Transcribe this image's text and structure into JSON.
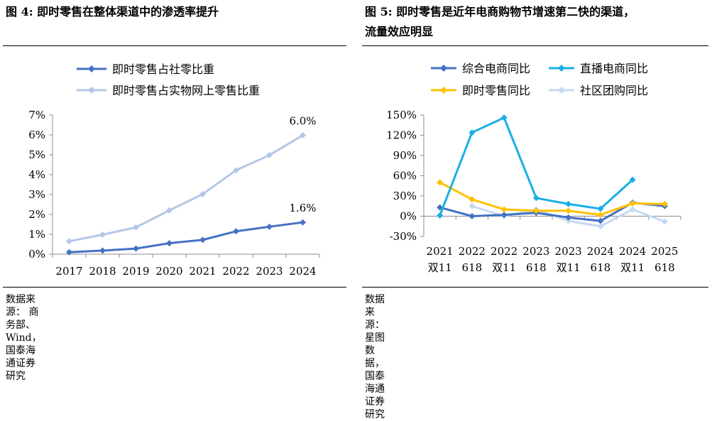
{
  "left": {
    "title": "图 4:  即时零售在整体渠道中的渗透率提升",
    "source": "数据来源：  商务部、Wind，国泰海通证券研究"
  },
  "right": {
    "title_line1": "图 5:  即时零售是近年电商购物节增速第二快的渠道，",
    "title_line2": "流量效应明显",
    "source": "数据来源：  星图数据，国泰海通证券研究"
  },
  "chart_data": [
    {
      "type": "line",
      "title": "即时零售在整体渠道中的渗透率提升",
      "categories": [
        "2017",
        "2018",
        "2019",
        "2020",
        "2021",
        "2022",
        "2023",
        "2024"
      ],
      "ylim": [
        0,
        7
      ],
      "yticks": [
        0,
        1,
        2,
        3,
        4,
        5,
        6,
        7
      ],
      "ytick_labels": [
        "0%",
        "1%",
        "2%",
        "3%",
        "4%",
        "5%",
        "6%",
        "7%"
      ],
      "legend_position": "top-left",
      "series": [
        {
          "name": "即时零售占社零比重",
          "color": "#4472C4",
          "values": [
            0.1,
            0.18,
            0.28,
            0.55,
            0.72,
            1.15,
            1.38,
            1.6
          ],
          "end_label": "1.6%"
        },
        {
          "name": "即时零售占实物网上零售比重",
          "color": "#B4C7E7",
          "values": [
            0.65,
            0.98,
            1.35,
            2.2,
            3.02,
            4.22,
            4.98,
            5.98
          ],
          "end_label": "6.0%"
        }
      ]
    },
    {
      "type": "line",
      "title": "即时零售是近年电商购物节增速第二快的渠道，流量效应明显",
      "categories": [
        [
          "2021",
          "双11"
        ],
        [
          "2022",
          "618"
        ],
        [
          "2022",
          "双11"
        ],
        [
          "2023",
          "618"
        ],
        [
          "2023",
          "双11"
        ],
        [
          "2024",
          "618"
        ],
        [
          "2024",
          "双11"
        ],
        [
          "2025",
          "618"
        ]
      ],
      "ylim": [
        -30,
        150
      ],
      "yticks": [
        -30,
        0,
        30,
        60,
        90,
        120,
        150
      ],
      "ytick_labels": [
        "-30%",
        "0%",
        "30%",
        "60%",
        "90%",
        "120%",
        "150%"
      ],
      "legend_position": "top",
      "series": [
        {
          "name": "综合电商同比",
          "color": "#4472C4",
          "values": [
            13,
            0,
            2,
            5,
            -2,
            -7,
            20,
            15
          ]
        },
        {
          "name": "直播电商同比",
          "color": "#1AAFE6",
          "values": [
            1,
            124,
            146,
            27,
            18,
            11,
            54,
            null
          ]
        },
        {
          "name": "即时零售同比",
          "color": "#FFC000",
          "values": [
            50,
            25,
            10,
            8,
            8,
            2,
            19,
            18
          ]
        },
        {
          "name": "社区团购同比",
          "color": "#C5D9F1",
          "values": [
            null,
            15,
            0,
            10,
            -7,
            -15,
            10,
            -8
          ]
        }
      ]
    }
  ]
}
